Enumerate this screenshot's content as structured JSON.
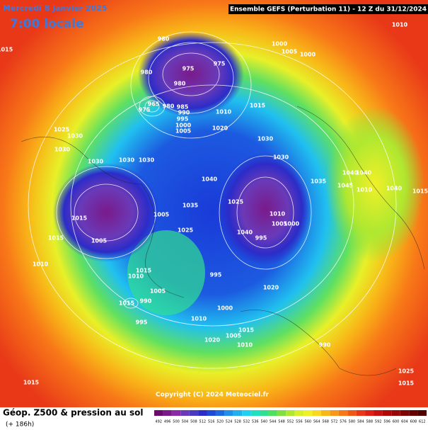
{
  "header": {
    "date": "Mercredi 8 janvier 2025",
    "time": "7:00 locale",
    "run": "Ensemble GEFS  (Perturbation 11)  -  12 Z du 31/12/2024"
  },
  "map": {
    "isobar_labels": [
      980,
      975,
      975,
      980,
      980,
      965,
      975,
      980,
      985,
      990,
      995,
      1000,
      1005,
      1010,
      1015,
      1020,
      1000,
      1005,
      1000,
      1010,
      1015,
      1025,
      1030,
      1030,
      1030,
      1030,
      1030,
      1030,
      1030,
      1040,
      1035,
      1025,
      1035,
      1040,
      1040,
      1045,
      1040,
      1015,
      1015,
      1005,
      1015,
      1010,
      1005,
      1025,
      1040,
      1010,
      1005,
      1000,
      995,
      995,
      1020,
      1015,
      1010,
      1005,
      1015,
      990,
      995,
      1000,
      1010,
      1020,
      1015,
      1005,
      1010,
      990,
      1025,
      1015,
      1015,
      1010
    ]
  },
  "copyright": "Copyright (C) 2024 Meteociel.fr",
  "footer": {
    "title": "Géop. Z500 & pression au sol",
    "lead": "(+ 186h)"
  },
  "scale": {
    "values": [
      492,
      496,
      500,
      504,
      508,
      512,
      516,
      520,
      524,
      528,
      532,
      536,
      540,
      544,
      548,
      552,
      556,
      560,
      564,
      568,
      572,
      576,
      580,
      584,
      588,
      592,
      596,
      600,
      604,
      608,
      612
    ],
    "colors": [
      "#6a0a6e",
      "#7a1a8a",
      "#8a2aa8",
      "#6a3ab8",
      "#4a3ac0",
      "#2c2cc8",
      "#1e4ad8",
      "#1c6ae0",
      "#2090e8",
      "#20b0f0",
      "#20d0f0",
      "#20e0c0",
      "#30e090",
      "#50e060",
      "#80e040",
      "#b0e830",
      "#d8f028",
      "#f0f028",
      "#f8d820",
      "#f8b818",
      "#f89818",
      "#f87818",
      "#f05818",
      "#e83818",
      "#e02018",
      "#c81010",
      "#b00808",
      "#980808",
      "#800404",
      "#680000",
      "#500000"
    ]
  }
}
